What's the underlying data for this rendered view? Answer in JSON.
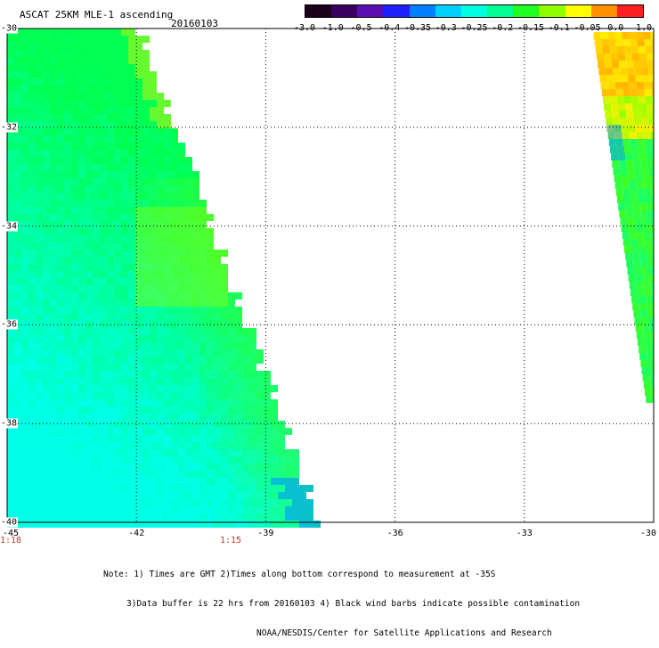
{
  "header": {
    "title": "ASCAT 25KM MLE-1 ascending",
    "date": "20160103"
  },
  "colorbar": {
    "tick_labels": [
      "-3.0",
      "-1.0",
      "-0.5",
      "-0.4",
      "-0.35",
      "-0.3",
      "-0.25",
      "-0.2",
      "-0.15",
      "-0.1",
      "-0.05",
      "0.0",
      "1.0"
    ],
    "colors": [
      "#1a001a",
      "#3a0060",
      "#5a10b0",
      "#2020ff",
      "#0080ff",
      "#00d0ff",
      "#00ffe0",
      "#00ff90",
      "#20ff20",
      "#90ff00",
      "#ffff00",
      "#ff9000",
      "#ff2020"
    ]
  },
  "axes": {
    "lon_labels": [
      "-45",
      "-42",
      "-39",
      "-36",
      "-33",
      "-30"
    ],
    "lat_labels": [
      "-30",
      "-32",
      "-34",
      "-36",
      "-38",
      "-40"
    ]
  },
  "times": [
    "1:18",
    "1:15"
  ],
  "note": {
    "line1": "Note: 1) Times are GMT 2)Times along bottom correspond to measurement at -35S",
    "line2": "3)Data buffer is 22 hrs from 20160103 4) Black wind barbs indicate possible contamination",
    "line3": "NOAA/NESDIS/Center for Satellite Applications and Research"
  }
}
